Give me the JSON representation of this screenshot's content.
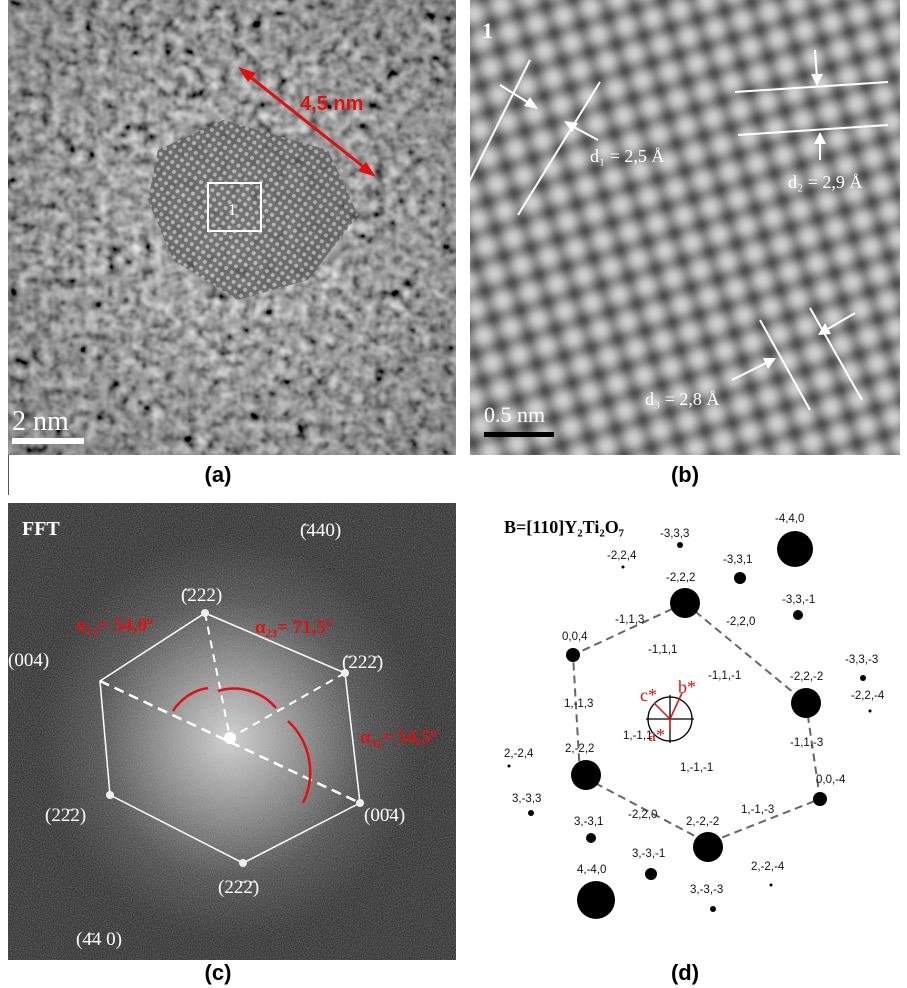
{
  "panel_a": {
    "caption": "(a)",
    "size_label": "4,5 nm",
    "box_label": "1",
    "scale_label": "2 nm"
  },
  "panel_b": {
    "caption": "(b)",
    "corner_label": "1",
    "scale_label": "0.5 nm",
    "d1": "d₁ = 2,5 Å",
    "d2": "d₂ = 2,9 Å",
    "d3": "d₃ = 2,8 Å"
  },
  "panel_c": {
    "caption": "(c)",
    "title": "FFT",
    "alpha12": "α₁₂= 54,0º",
    "alpha23": "α₂₃= 71,5º",
    "alpha31": "α₃₁= 54,5º",
    "reflections": {
      "r440_top": "(̄440)",
      "r222_top": "(̄222)",
      "r004_left": "(004)",
      "r222_right": "(̄222̄)",
      "r222_left": "(22̄2)",
      "r004_right": "(00̄4)",
      "r222_bottom": "(22̄2̄)",
      "r440_bottom": "(4̄4 0)"
    }
  },
  "panel_d": {
    "caption": "(d)",
    "title": "B=[110]Y₂Ti₂O₇",
    "axis_c": "c*",
    "axis_b": "b*",
    "axis_a": "a*",
    "spots": [
      {
        "label": "-4,4,0",
        "size": "large"
      },
      {
        "label": "-3,3,3",
        "size": "small"
      },
      {
        "label": "-2,2,4",
        "size": "tiny"
      },
      {
        "label": "-3,3,1",
        "size": "small"
      },
      {
        "label": "-2,2,2",
        "size": "medium"
      },
      {
        "label": "-3,3,-1",
        "size": "small"
      },
      {
        "label": "-1,1,3",
        "size": "none"
      },
      {
        "label": "-2,2,0",
        "size": "none"
      },
      {
        "label": "0,0,4",
        "size": "small"
      },
      {
        "label": "-1,1,1",
        "size": "none"
      },
      {
        "label": "-2,2,-2",
        "size": "medium"
      },
      {
        "label": "-3,3,-3",
        "size": "small"
      },
      {
        "label": "-1,1,-1",
        "size": "none"
      },
      {
        "label": "-2,2,-4",
        "size": "tiny"
      },
      {
        "label": "1,-1,3",
        "size": "none"
      },
      {
        "label": "-1,1,-3",
        "size": "none"
      },
      {
        "label": "2,-2,4",
        "size": "tiny"
      },
      {
        "label": "1,-1,1",
        "size": "none"
      },
      {
        "label": "2,-2,2",
        "size": "medium"
      },
      {
        "label": "0,0,-4",
        "size": "small"
      },
      {
        "label": "3,-3,3",
        "size": "small"
      },
      {
        "label": "1,-1,-1",
        "size": "none"
      },
      {
        "label": "-2,2,0",
        "size": "none"
      },
      {
        "label": "1,-1,-3",
        "size": "none"
      },
      {
        "label": "3,-3,1",
        "size": "small"
      },
      {
        "label": "2,-2,-2",
        "size": "medium"
      },
      {
        "label": "3,-3,-1",
        "size": "small"
      },
      {
        "label": "2,-2,-4",
        "size": "tiny"
      },
      {
        "label": "4,-4,0",
        "size": "large"
      },
      {
        "label": "3,-3,-3",
        "size": "small"
      }
    ]
  }
}
